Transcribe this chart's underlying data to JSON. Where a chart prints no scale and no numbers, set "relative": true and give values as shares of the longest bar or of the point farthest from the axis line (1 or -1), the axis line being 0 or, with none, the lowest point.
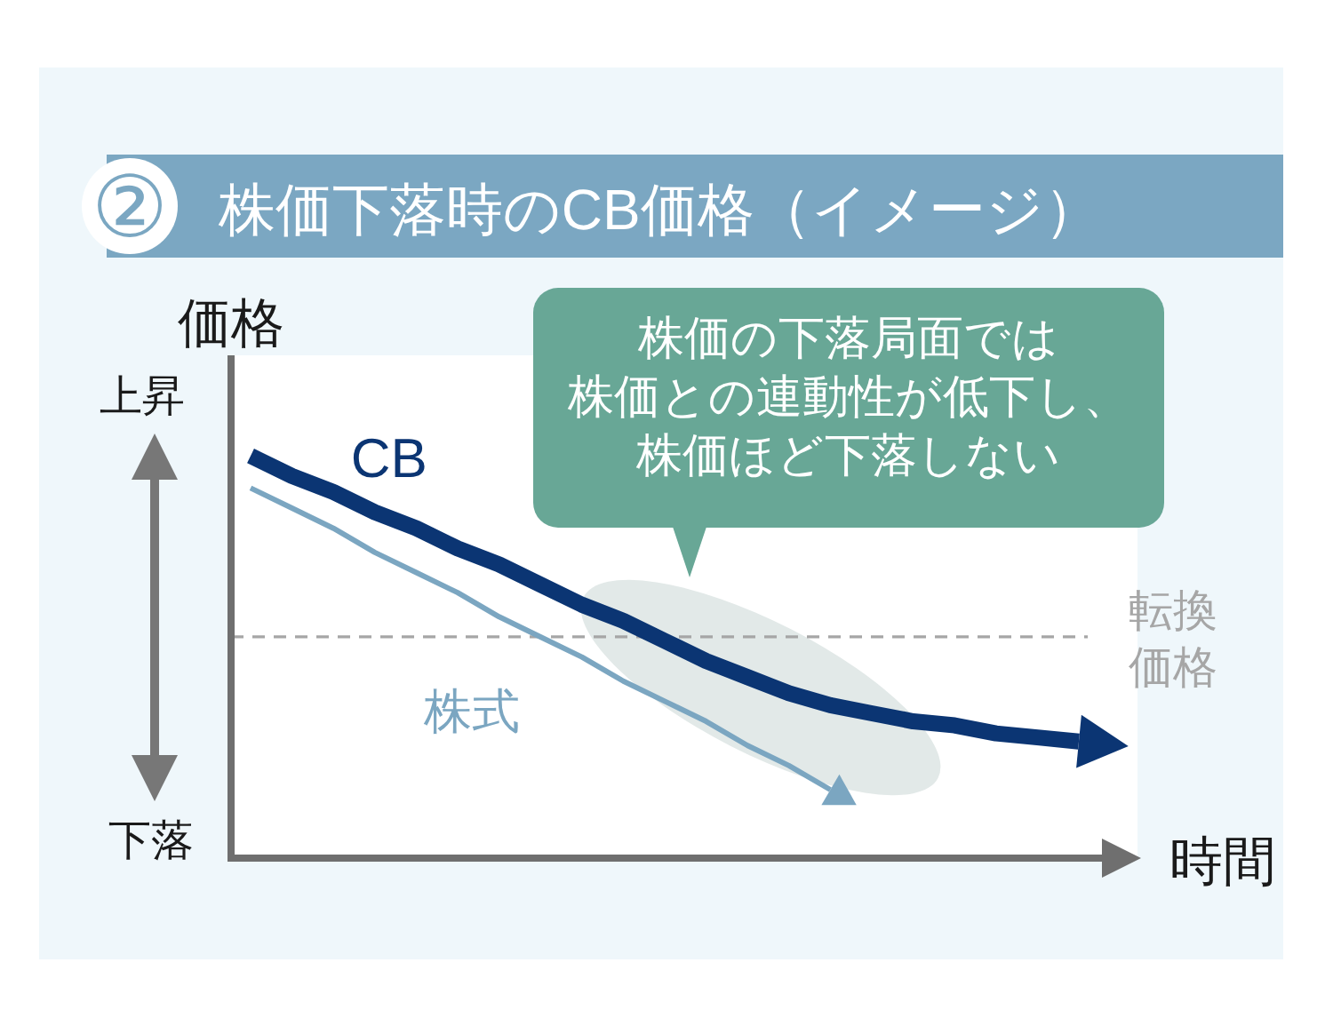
{
  "chart_data": {
    "type": "line",
    "title": "② 株価下落時のCB価格（イメージ）",
    "xlabel": "時間",
    "ylabel": "価格",
    "relative": true,
    "legend": false,
    "categories": [
      null,
      null,
      null,
      null,
      null,
      null,
      null,
      null,
      null,
      null,
      null,
      null,
      null,
      null,
      null,
      null,
      null,
      null,
      null,
      null,
      null
    ],
    "series": [
      {
        "name": "CB",
        "color": "#0b3573",
        "values": [
          1.0,
          0.95,
          0.91,
          0.86,
          0.82,
          0.77,
          0.73,
          0.68,
          0.63,
          0.59,
          0.54,
          0.49,
          0.45,
          0.41,
          0.38,
          0.36,
          0.34,
          0.33,
          0.31,
          0.3,
          0.29
        ]
      },
      {
        "name": "株式",
        "color": "#7ba6c1",
        "values": [
          0.92,
          0.87,
          0.82,
          0.76,
          0.71,
          0.66,
          0.6,
          0.55,
          0.5,
          0.44,
          0.39,
          0.34,
          0.28,
          0.23,
          0.17,
          null,
          null,
          null,
          null,
          null,
          null
        ]
      }
    ],
    "ref_lines": [
      {
        "axis": "y",
        "value": 0.55,
        "label": "転換価格",
        "color": "#a6a6a6",
        "line_style": "dashed"
      }
    ],
    "annotations": [
      "株価の下落局面では株価との連動性が低下し、株価ほど下落しない",
      "上昇",
      "下落"
    ]
  }
}
